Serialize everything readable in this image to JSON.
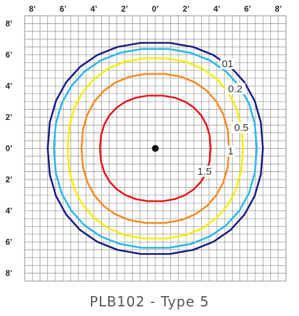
{
  "chart_data": {
    "type": "contour",
    "title": "PLB102 - Type 5",
    "x_ticks": [
      "8’",
      "6’",
      "4’",
      "2’",
      "0’",
      "2’",
      "4’",
      "6’",
      "8’"
    ],
    "y_ticks": [
      "8’",
      "6’",
      "4’",
      "2’",
      "0’",
      "2’",
      "4’",
      "6’",
      "8’"
    ],
    "xlim": [
      -8.5,
      8.5
    ],
    "ylim": [
      -8.5,
      8.5
    ],
    "grid": true,
    "grid_step": 0.5,
    "center_point": {
      "x": 0,
      "y": 0
    },
    "series": [
      {
        "label": "01",
        "color": "#1a1a80",
        "x_radius": 7.0,
        "y_top": 6.8,
        "y_bottom": -6.8,
        "label_x": 4.7,
        "label_y": 5.3
      },
      {
        "label": "0.2",
        "color": "#29b6e8",
        "x_radius": 6.6,
        "y_top": 6.4,
        "y_bottom": -6.4,
        "label_x": 5.2,
        "label_y": 3.7
      },
      {
        "label": "0.5",
        "color": "#f5f000",
        "x_radius": 5.7,
        "y_top": 5.8,
        "y_bottom": -5.8,
        "label_x": 5.6,
        "label_y": 1.2
      },
      {
        "label": "1",
        "color": "#f58a1f",
        "x_radius": 4.8,
        "y_top": 4.8,
        "y_bottom": -4.8,
        "label_x": 4.9,
        "label_y": -0.3
      },
      {
        "label": "1.5",
        "color": "#e8141b",
        "x_radius": 3.6,
        "y_top": 3.4,
        "y_bottom": -3.4,
        "label_x": 3.2,
        "label_y": -1.6
      }
    ]
  }
}
